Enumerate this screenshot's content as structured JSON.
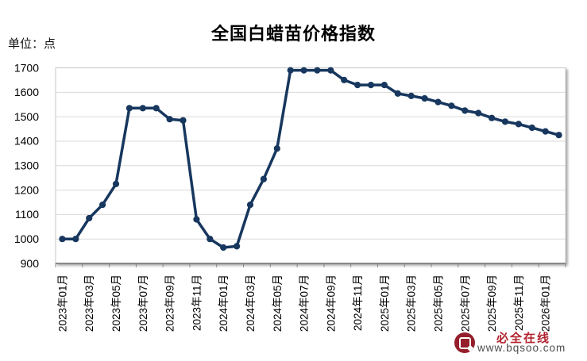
{
  "header": {
    "unit_label": "单位：点"
  },
  "watermark": {
    "brand": "必全在线",
    "url": "www.bqsoo.com",
    "logo_icon": "bq-logo",
    "brand_color": "#b1232f",
    "url_color": "#4d4d4d",
    "logo_color": "#951f2b"
  },
  "chart_data": {
    "type": "line",
    "title": "全国白蜡苗价格指数",
    "ylabel": "单位：点",
    "xlabel": "",
    "ylim": [
      900,
      1700
    ],
    "ytick_step": 100,
    "xtick_every": 2,
    "grid": true,
    "legend": "none",
    "line_color": "#17375e",
    "marker": "circle",
    "gridline_color": "#d9d9d9",
    "border_color": "#c9c9c9",
    "axis_line_color": "#7f7f7f",
    "text_color": "#000000",
    "categories": [
      "2023年01月",
      "2023年02月",
      "2023年03月",
      "2023年04月",
      "2023年05月",
      "2023年06月",
      "2023年07月",
      "2023年08月",
      "2023年09月",
      "2023年10月",
      "2023年11月",
      "2023年12月",
      "2024年01月",
      "2024年02月",
      "2024年03月",
      "2024年04月",
      "2024年05月",
      "2024年06月",
      "2024年07月",
      "2024年08月",
      "2024年09月",
      "2024年10月",
      "2024年11月",
      "2024年12月",
      "2025年01月",
      "2025年02月",
      "2025年03月",
      "2025年04月",
      "2025年05月",
      "2025年06月",
      "2025年07月",
      "2025年08月",
      "2025年09月",
      "2025年10月",
      "2025年11月",
      "2025年12月",
      "2026年01月",
      "2026年02月"
    ],
    "series": [
      {
        "name": "全国白蜡苗价格指数",
        "values": [
          1000,
          1000,
          1085,
          1140,
          1225,
          1535,
          1535,
          1535,
          1490,
          1485,
          1080,
          1000,
          965,
          970,
          1140,
          1245,
          1370,
          1690,
          1690,
          1690,
          1690,
          1650,
          1630,
          1630,
          1630,
          1595,
          1585,
          1575,
          1560,
          1545,
          1525,
          1515,
          1495,
          1480,
          1470,
          1455,
          1440,
          1425
        ]
      }
    ]
  }
}
